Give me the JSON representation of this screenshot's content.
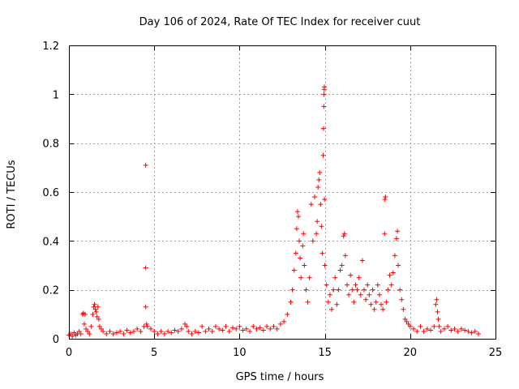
{
  "chart_data": {
    "type": "scatter",
    "title": "Day 106 of 2024, Rate Of TEC Index for receiver cuut",
    "xlabel": "GPS time / hours",
    "ylabel": "ROTI / TECUs",
    "xlim": [
      0,
      25
    ],
    "ylim": [
      0,
      1.2
    ],
    "xticks": [
      0,
      5,
      10,
      15,
      20,
      25
    ],
    "yticks": [
      0,
      0.2,
      0.4,
      0.6,
      0.8,
      1,
      1.2
    ],
    "ytick_labels": [
      "0",
      "0.2",
      "0.4",
      "0.6",
      "0.8",
      "1",
      "1.2"
    ],
    "grid": true,
    "marker": "+",
    "color": "#ff0000",
    "series": [
      {
        "points": [
          [
            0.0,
            0.015
          ],
          [
            0.1,
            0.02
          ],
          [
            0.2,
            0.01
          ],
          [
            0.3,
            0.025
          ],
          [
            0.4,
            0.015
          ],
          [
            0.5,
            0.02
          ],
          [
            0.6,
            0.03
          ],
          [
            0.7,
            0.02
          ],
          [
            0.8,
            0.1
          ],
          [
            0.85,
            0.105
          ],
          [
            0.9,
            0.06
          ],
          [
            0.95,
            0.1
          ],
          [
            1.0,
            0.04
          ],
          [
            1.1,
            0.03
          ],
          [
            1.2,
            0.02
          ],
          [
            1.3,
            0.05
          ],
          [
            1.4,
            0.1
          ],
          [
            1.45,
            0.13
          ],
          [
            1.5,
            0.14
          ],
          [
            1.55,
            0.12
          ],
          [
            1.6,
            0.11
          ],
          [
            1.65,
            0.09
          ],
          [
            1.7,
            0.13
          ],
          [
            1.75,
            0.08
          ],
          [
            1.8,
            0.05
          ],
          [
            1.9,
            0.04
          ],
          [
            2.0,
            0.03
          ],
          [
            2.2,
            0.02
          ],
          [
            2.4,
            0.03
          ],
          [
            2.6,
            0.02
          ],
          [
            2.8,
            0.025
          ],
          [
            3.0,
            0.03
          ],
          [
            3.2,
            0.02
          ],
          [
            3.4,
            0.035
          ],
          [
            3.6,
            0.025
          ],
          [
            3.8,
            0.03
          ],
          [
            4.0,
            0.04
          ],
          [
            4.2,
            0.03
          ],
          [
            4.4,
            0.05
          ],
          [
            4.5,
            0.71
          ],
          [
            4.5,
            0.29
          ],
          [
            4.5,
            0.13
          ],
          [
            4.55,
            0.06
          ],
          [
            4.6,
            0.05
          ],
          [
            4.8,
            0.04
          ],
          [
            5.0,
            0.03
          ],
          [
            5.2,
            0.02
          ],
          [
            5.4,
            0.03
          ],
          [
            5.6,
            0.02
          ],
          [
            5.8,
            0.03
          ],
          [
            6.0,
            0.025
          ],
          [
            6.2,
            0.035
          ],
          [
            6.4,
            0.03
          ],
          [
            6.6,
            0.04
          ],
          [
            6.8,
            0.06
          ],
          [
            6.9,
            0.05
          ],
          [
            7.0,
            0.03
          ],
          [
            7.2,
            0.02
          ],
          [
            7.4,
            0.03
          ],
          [
            7.6,
            0.025
          ],
          [
            7.8,
            0.05
          ],
          [
            8.0,
            0.03
          ],
          [
            8.2,
            0.04
          ],
          [
            8.4,
            0.03
          ],
          [
            8.6,
            0.05
          ],
          [
            8.8,
            0.04
          ],
          [
            9.0,
            0.035
          ],
          [
            9.2,
            0.05
          ],
          [
            9.4,
            0.03
          ],
          [
            9.6,
            0.045
          ],
          [
            9.8,
            0.04
          ],
          [
            10.0,
            0.05
          ],
          [
            10.2,
            0.035
          ],
          [
            10.4,
            0.04
          ],
          [
            10.6,
            0.03
          ],
          [
            10.8,
            0.05
          ],
          [
            11.0,
            0.04
          ],
          [
            11.2,
            0.045
          ],
          [
            11.4,
            0.035
          ],
          [
            11.6,
            0.05
          ],
          [
            11.8,
            0.04
          ],
          [
            12.0,
            0.05
          ],
          [
            12.2,
            0.04
          ],
          [
            12.4,
            0.06
          ],
          [
            12.6,
            0.07
          ],
          [
            12.8,
            0.1
          ],
          [
            13.0,
            0.15
          ],
          [
            13.1,
            0.2
          ],
          [
            13.2,
            0.28
          ],
          [
            13.3,
            0.35
          ],
          [
            13.35,
            0.45
          ],
          [
            13.4,
            0.52
          ],
          [
            13.45,
            0.5
          ],
          [
            13.5,
            0.4
          ],
          [
            13.55,
            0.33
          ],
          [
            13.6,
            0.25
          ],
          [
            13.7,
            0.38
          ],
          [
            13.75,
            0.43
          ],
          [
            13.8,
            0.3
          ],
          [
            13.9,
            0.2
          ],
          [
            14.0,
            0.15
          ],
          [
            14.1,
            0.25
          ],
          [
            14.2,
            0.55
          ],
          [
            14.3,
            0.4
          ],
          [
            14.4,
            0.58
          ],
          [
            14.5,
            0.43
          ],
          [
            14.55,
            0.48
          ],
          [
            14.6,
            0.62
          ],
          [
            14.65,
            0.65
          ],
          [
            14.7,
            0.68
          ],
          [
            14.75,
            0.55
          ],
          [
            14.8,
            0.46
          ],
          [
            14.85,
            0.35
          ],
          [
            14.9,
            0.75
          ],
          [
            14.92,
            0.86
          ],
          [
            14.94,
            0.95
          ],
          [
            14.95,
            1.0
          ],
          [
            14.96,
            1.02
          ],
          [
            14.97,
            1.03
          ],
          [
            14.98,
            0.57
          ],
          [
            15.0,
            0.3
          ],
          [
            15.1,
            0.22
          ],
          [
            15.2,
            0.15
          ],
          [
            15.3,
            0.18
          ],
          [
            15.4,
            0.12
          ],
          [
            15.5,
            0.2
          ],
          [
            15.6,
            0.25
          ],
          [
            15.7,
            0.14
          ],
          [
            15.8,
            0.2
          ],
          [
            15.9,
            0.28
          ],
          [
            16.0,
            0.3
          ],
          [
            16.1,
            0.42
          ],
          [
            16.15,
            0.43
          ],
          [
            16.2,
            0.34
          ],
          [
            16.3,
            0.22
          ],
          [
            16.4,
            0.18
          ],
          [
            16.5,
            0.26
          ],
          [
            16.6,
            0.2
          ],
          [
            16.7,
            0.15
          ],
          [
            16.8,
            0.22
          ],
          [
            16.9,
            0.2
          ],
          [
            17.0,
            0.25
          ],
          [
            17.1,
            0.18
          ],
          [
            17.2,
            0.32
          ],
          [
            17.3,
            0.2
          ],
          [
            17.4,
            0.16
          ],
          [
            17.5,
            0.22
          ],
          [
            17.6,
            0.18
          ],
          [
            17.7,
            0.14
          ],
          [
            17.8,
            0.2
          ],
          [
            17.9,
            0.12
          ],
          [
            18.0,
            0.15
          ],
          [
            18.1,
            0.22
          ],
          [
            18.2,
            0.18
          ],
          [
            18.3,
            0.14
          ],
          [
            18.4,
            0.12
          ],
          [
            18.5,
            0.43
          ],
          [
            18.52,
            0.57
          ],
          [
            18.55,
            0.58
          ],
          [
            18.6,
            0.15
          ],
          [
            18.7,
            0.2
          ],
          [
            18.8,
            0.26
          ],
          [
            18.9,
            0.22
          ],
          [
            19.0,
            0.27
          ],
          [
            19.1,
            0.34
          ],
          [
            19.2,
            0.41
          ],
          [
            19.25,
            0.44
          ],
          [
            19.3,
            0.3
          ],
          [
            19.4,
            0.2
          ],
          [
            19.5,
            0.16
          ],
          [
            19.6,
            0.12
          ],
          [
            19.7,
            0.08
          ],
          [
            19.8,
            0.07
          ],
          [
            19.9,
            0.06
          ],
          [
            20.0,
            0.05
          ],
          [
            20.2,
            0.04
          ],
          [
            20.4,
            0.03
          ],
          [
            20.6,
            0.05
          ],
          [
            20.8,
            0.03
          ],
          [
            21.0,
            0.04
          ],
          [
            21.2,
            0.035
          ],
          [
            21.4,
            0.05
          ],
          [
            21.5,
            0.14
          ],
          [
            21.55,
            0.16
          ],
          [
            21.6,
            0.11
          ],
          [
            21.65,
            0.08
          ],
          [
            21.7,
            0.05
          ],
          [
            21.8,
            0.03
          ],
          [
            22.0,
            0.04
          ],
          [
            22.2,
            0.05
          ],
          [
            22.4,
            0.035
          ],
          [
            22.6,
            0.04
          ],
          [
            22.8,
            0.03
          ],
          [
            23.0,
            0.04
          ],
          [
            23.2,
            0.035
          ],
          [
            23.4,
            0.03
          ],
          [
            23.6,
            0.025
          ],
          [
            23.8,
            0.03
          ],
          [
            24.0,
            0.02
          ]
        ]
      }
    ]
  }
}
